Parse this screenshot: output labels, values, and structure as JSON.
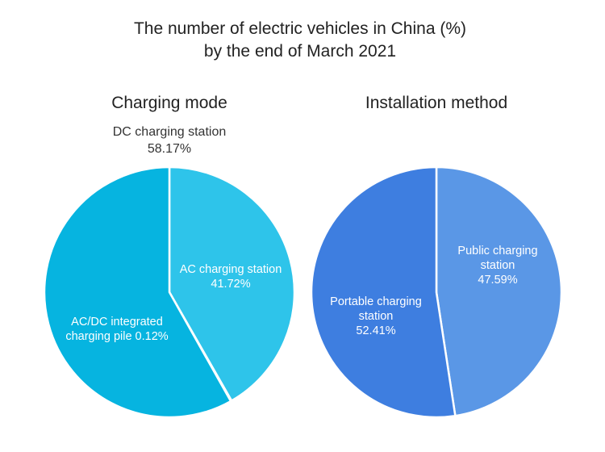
{
  "chart_data": [
    {
      "type": "pie",
      "title": "The number of electric vehicles in China (%)",
      "title_line2": "by the end of March 2021",
      "subtitle": "Charging mode",
      "unit": "%",
      "slices": [
        {
          "name": "AC charging station",
          "value": 41.72,
          "color": "#2ec4ea",
          "label_lines": [
            "AC charging station",
            "41.72%"
          ]
        },
        {
          "name": "DC charging station",
          "value": 58.17,
          "color": "#06b4e0",
          "label_lines": [
            "DC charging station",
            "58.17%"
          ]
        },
        {
          "name": "AC/DC integrated charging pile",
          "value": 0.12,
          "color": "#1aa0cc",
          "label_lines": [
            "AC/DC integrated",
            "charging pile 0.12%"
          ]
        }
      ]
    },
    {
      "type": "pie",
      "subtitle": "Installation method",
      "unit": "%",
      "slices": [
        {
          "name": "Public charging station",
          "value": 47.59,
          "color": "#5a97e6",
          "label_lines": [
            "Public charging",
            "station",
            "47.59%"
          ]
        },
        {
          "name": "Portable charging station",
          "value": 52.41,
          "color": "#3e7ee0",
          "label_lines": [
            "Portable charging",
            "station",
            "52.41%"
          ]
        }
      ]
    }
  ]
}
